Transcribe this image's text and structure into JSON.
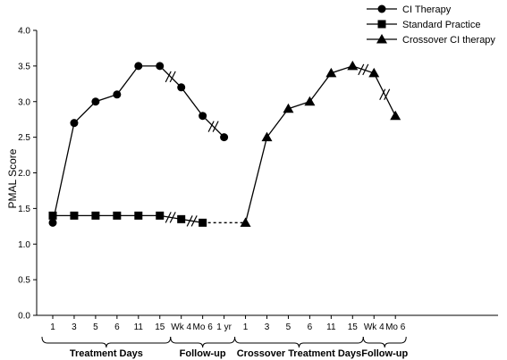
{
  "chart_data": {
    "type": "line",
    "ylabel": "PMAL Score",
    "ylim": [
      0,
      4.0
    ],
    "yticks": [
      "0.0",
      "0.5",
      "1.0",
      "1.5",
      "2.0",
      "2.5",
      "3.0",
      "3.5",
      "4.0"
    ],
    "categories": [
      "1",
      "3",
      "5",
      "6",
      "11",
      "15",
      "Wk 4",
      "Mo 6",
      "1 yr",
      "1",
      "3",
      "5",
      "6",
      "11",
      "15",
      "Wk 4",
      "Mo 6"
    ],
    "groups": [
      {
        "label": "Treatment Days",
        "from": 0,
        "to": 5
      },
      {
        "label": "Follow-up",
        "from": 6,
        "to": 8
      },
      {
        "label": "Crossover Treatment Days",
        "from": 9,
        "to": 14
      },
      {
        "label": "Follow-up",
        "from": 15,
        "to": 16
      }
    ],
    "series": [
      {
        "name": "CI Therapy",
        "marker": "circle",
        "points": [
          [
            0,
            1.3
          ],
          [
            1,
            2.7
          ],
          [
            2,
            3.0
          ],
          [
            3,
            3.1
          ],
          [
            4,
            3.5
          ],
          [
            5,
            3.5
          ],
          [
            6,
            3.2
          ],
          [
            7,
            2.8
          ],
          [
            8,
            2.5
          ]
        ]
      },
      {
        "name": "Standard Practice",
        "marker": "square",
        "points": [
          [
            0,
            1.4
          ],
          [
            1,
            1.4
          ],
          [
            2,
            1.4
          ],
          [
            3,
            1.4
          ],
          [
            4,
            1.4
          ],
          [
            5,
            1.4
          ],
          [
            6,
            1.35
          ],
          [
            7,
            1.3
          ]
        ]
      },
      {
        "name": "Crossover CI therapy",
        "marker": "triangle",
        "points": [
          [
            9,
            1.3
          ],
          [
            10,
            2.5
          ],
          [
            11,
            2.9
          ],
          [
            12,
            3.0
          ],
          [
            13,
            3.4
          ],
          [
            14,
            3.5
          ],
          [
            15,
            3.4
          ],
          [
            16,
            2.8
          ]
        ]
      }
    ],
    "dotted_link": {
      "from": [
        7,
        1.3
      ],
      "to": [
        9,
        1.3
      ]
    },
    "breaks": [
      {
        "between": [
          5,
          6
        ],
        "series": "CI Therapy"
      },
      {
        "between": [
          7,
          8
        ],
        "series": "CI Therapy"
      },
      {
        "between": [
          5,
          6
        ],
        "series": "Standard Practice"
      },
      {
        "between": [
          6,
          7
        ],
        "series": "Standard Practice"
      },
      {
        "between": [
          14,
          15
        ],
        "series": "Crossover CI therapy"
      },
      {
        "between": [
          15,
          16
        ],
        "series": "Crossover CI therapy"
      }
    ],
    "legend_position": "top-right",
    "grid": false,
    "colors": {
      "line": "#000000",
      "axis": "#000000"
    }
  }
}
